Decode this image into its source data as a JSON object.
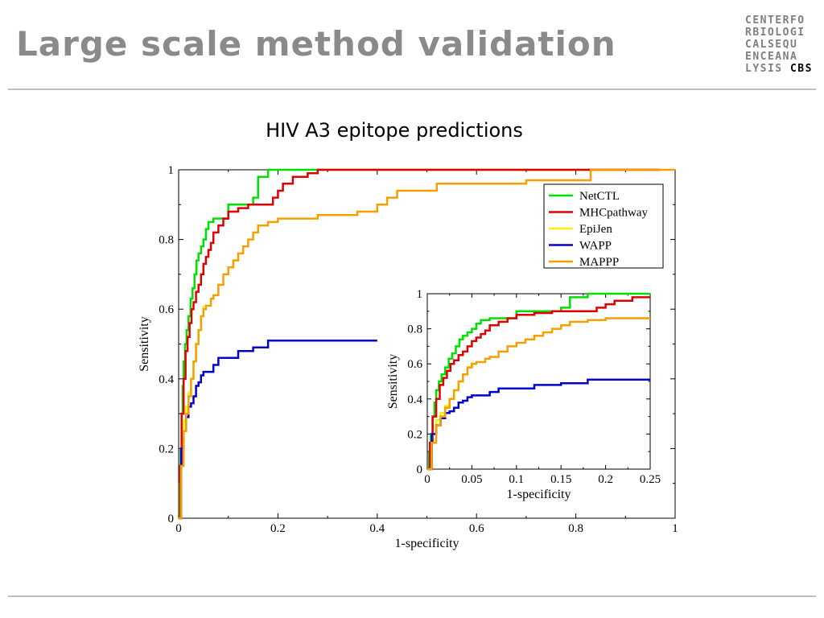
{
  "slide": {
    "title": "Large scale method validation",
    "logo_lines": [
      "CENTERFO",
      "RBIOLOGI",
      "CALSEQU",
      "ENCEANA",
      "LYSIS"
    ],
    "logo_bold": "CBS"
  },
  "chart_data": [
    {
      "type": "line",
      "title": "HIV A3 epitope predictions",
      "xlabel": "1-specificity",
      "ylabel": "Sensitivity",
      "xlim": [
        0,
        1
      ],
      "ylim": [
        0,
        1
      ],
      "xticks": [
        0,
        0.2,
        0.4,
        0.6,
        0.8,
        1
      ],
      "xtick_labels": [
        "0",
        "0.2",
        "0.4",
        "0.6",
        "0.8",
        "1"
      ],
      "yticks": [
        0,
        0.2,
        0.4,
        0.6,
        0.8,
        1
      ],
      "ytick_labels": [
        "0",
        "0.2",
        "0.4",
        "0.6",
        "0.8",
        "1"
      ],
      "legend_position": "top-right",
      "grid": false,
      "series": [
        {
          "name": "NetCTL",
          "color": "#00e000",
          "x": [
            0,
            0.002,
            0.004,
            0.006,
            0.008,
            0.01,
            0.013,
            0.016,
            0.02,
            0.024,
            0.028,
            0.032,
            0.036,
            0.04,
            0.045,
            0.05,
            0.055,
            0.06,
            0.07,
            0.09,
            0.1,
            0.13,
            0.15,
            0.16,
            0.18,
            0.2,
            0.4,
            0.7,
            0.97
          ],
          "y": [
            0,
            0.1,
            0.2,
            0.3,
            0.38,
            0.45,
            0.5,
            0.54,
            0.58,
            0.63,
            0.66,
            0.7,
            0.74,
            0.76,
            0.78,
            0.8,
            0.83,
            0.85,
            0.86,
            0.86,
            0.9,
            0.9,
            0.92,
            0.98,
            1,
            1,
            1,
            1,
            1
          ]
        },
        {
          "name": "MHCpathway",
          "color": "#e00000",
          "x": [
            0,
            0.003,
            0.006,
            0.01,
            0.014,
            0.018,
            0.022,
            0.026,
            0.03,
            0.035,
            0.04,
            0.045,
            0.05,
            0.055,
            0.06,
            0.065,
            0.07,
            0.08,
            0.09,
            0.1,
            0.12,
            0.14,
            0.16,
            0.18,
            0.19,
            0.2,
            0.21,
            0.23,
            0.26,
            0.28,
            0.4,
            0.7,
            0.97
          ],
          "y": [
            0,
            0.15,
            0.3,
            0.4,
            0.48,
            0.52,
            0.56,
            0.6,
            0.62,
            0.65,
            0.67,
            0.7,
            0.73,
            0.75,
            0.77,
            0.79,
            0.82,
            0.84,
            0.86,
            0.88,
            0.89,
            0.9,
            0.9,
            0.9,
            0.92,
            0.94,
            0.96,
            0.98,
            0.99,
            1,
            1,
            1,
            1
          ]
        },
        {
          "name": "EpiJen",
          "color": "#ffee00",
          "x": [
            0,
            0.005,
            0.01,
            0.015,
            0.02,
            0.025,
            0.03,
            0.035,
            0.04,
            0.045,
            0.05
          ],
          "y": [
            0,
            0.2,
            0.28,
            0.32,
            0.36,
            0.4,
            0.45,
            0.5,
            0.54,
            0.58,
            0.61
          ]
        },
        {
          "name": "WAPP",
          "color": "#0000d0",
          "x": [
            0,
            0.005,
            0.01,
            0.015,
            0.02,
            0.025,
            0.03,
            0.035,
            0.04,
            0.045,
            0.05,
            0.06,
            0.07,
            0.08,
            0.1,
            0.12,
            0.15,
            0.18,
            0.25,
            0.4
          ],
          "y": [
            0,
            0.2,
            0.25,
            0.29,
            0.32,
            0.33,
            0.35,
            0.38,
            0.39,
            0.41,
            0.42,
            0.42,
            0.44,
            0.46,
            0.46,
            0.48,
            0.49,
            0.51,
            0.51,
            0.51
          ]
        },
        {
          "name": "MAPPP",
          "color": "#f5a000",
          "x": [
            0,
            0.005,
            0.01,
            0.015,
            0.02,
            0.025,
            0.03,
            0.035,
            0.04,
            0.045,
            0.05,
            0.055,
            0.06,
            0.065,
            0.07,
            0.08,
            0.09,
            0.1,
            0.11,
            0.12,
            0.13,
            0.14,
            0.15,
            0.16,
            0.18,
            0.2,
            0.22,
            0.25,
            0.28,
            0.32,
            0.36,
            0.4,
            0.42,
            0.44,
            0.5,
            0.52,
            0.6,
            0.7,
            0.83,
            1
          ],
          "y": [
            0,
            0.15,
            0.25,
            0.3,
            0.35,
            0.4,
            0.45,
            0.5,
            0.54,
            0.58,
            0.6,
            0.61,
            0.61,
            0.63,
            0.64,
            0.67,
            0.7,
            0.72,
            0.74,
            0.76,
            0.78,
            0.8,
            0.82,
            0.84,
            0.85,
            0.86,
            0.86,
            0.86,
            0.87,
            0.87,
            0.88,
            0.9,
            0.92,
            0.94,
            0.94,
            0.96,
            0.96,
            0.97,
            1,
            1
          ]
        }
      ]
    },
    {
      "type": "line",
      "title": "",
      "xlabel": "1-specificity",
      "ylabel": "Sensitivity",
      "xlim": [
        0,
        0.25
      ],
      "ylim": [
        0,
        1
      ],
      "xticks": [
        0,
        0.05,
        0.1,
        0.15,
        0.2,
        0.25
      ],
      "xtick_labels": [
        "0",
        "0.05",
        "0.1",
        "0.15",
        "0.2",
        "0.25"
      ],
      "yticks": [
        0,
        0.2,
        0.4,
        0.6,
        0.8,
        1
      ],
      "ytick_labels": [
        "0",
        "0.2",
        "0.4",
        "0.6",
        "0.8",
        "1"
      ],
      "grid": false,
      "series": [
        {
          "name": "NetCTL",
          "color": "#00e000",
          "x": [
            0,
            0.002,
            0.004,
            0.006,
            0.008,
            0.01,
            0.013,
            0.016,
            0.02,
            0.024,
            0.028,
            0.032,
            0.036,
            0.04,
            0.045,
            0.05,
            0.055,
            0.06,
            0.07,
            0.09,
            0.1,
            0.13,
            0.15,
            0.16,
            0.18,
            0.2,
            0.25
          ],
          "y": [
            0,
            0.1,
            0.2,
            0.3,
            0.38,
            0.45,
            0.5,
            0.54,
            0.58,
            0.63,
            0.66,
            0.7,
            0.74,
            0.76,
            0.78,
            0.8,
            0.83,
            0.85,
            0.86,
            0.86,
            0.9,
            0.9,
            0.92,
            0.98,
            1,
            1,
            1
          ]
        },
        {
          "name": "MHCpathway",
          "color": "#e00000",
          "x": [
            0,
            0.003,
            0.006,
            0.01,
            0.014,
            0.018,
            0.022,
            0.026,
            0.03,
            0.035,
            0.04,
            0.045,
            0.05,
            0.055,
            0.06,
            0.065,
            0.07,
            0.08,
            0.09,
            0.1,
            0.12,
            0.14,
            0.16,
            0.18,
            0.19,
            0.2,
            0.21,
            0.23,
            0.25
          ],
          "y": [
            0,
            0.15,
            0.3,
            0.4,
            0.48,
            0.52,
            0.56,
            0.6,
            0.62,
            0.65,
            0.67,
            0.7,
            0.73,
            0.75,
            0.77,
            0.79,
            0.82,
            0.84,
            0.86,
            0.88,
            0.89,
            0.9,
            0.9,
            0.9,
            0.92,
            0.94,
            0.96,
            0.98,
            0.98
          ]
        },
        {
          "name": "EpiJen",
          "color": "#ffee00",
          "x": [
            0,
            0.005,
            0.01,
            0.015,
            0.02,
            0.025,
            0.03,
            0.035,
            0.04,
            0.045,
            0.05
          ],
          "y": [
            0,
            0.2,
            0.28,
            0.32,
            0.36,
            0.4,
            0.45,
            0.5,
            0.54,
            0.58,
            0.61
          ]
        },
        {
          "name": "WAPP",
          "color": "#0000d0",
          "x": [
            0,
            0.005,
            0.01,
            0.015,
            0.02,
            0.025,
            0.03,
            0.035,
            0.04,
            0.045,
            0.05,
            0.06,
            0.07,
            0.08,
            0.1,
            0.12,
            0.15,
            0.18,
            0.25
          ],
          "y": [
            0,
            0.2,
            0.25,
            0.29,
            0.32,
            0.33,
            0.35,
            0.38,
            0.39,
            0.41,
            0.42,
            0.42,
            0.44,
            0.46,
            0.46,
            0.48,
            0.49,
            0.51,
            0.51
          ]
        },
        {
          "name": "MAPPP",
          "color": "#f5a000",
          "x": [
            0,
            0.005,
            0.01,
            0.015,
            0.02,
            0.025,
            0.03,
            0.035,
            0.04,
            0.045,
            0.05,
            0.055,
            0.06,
            0.065,
            0.07,
            0.08,
            0.09,
            0.1,
            0.11,
            0.12,
            0.13,
            0.14,
            0.15,
            0.16,
            0.18,
            0.2,
            0.25
          ],
          "y": [
            0,
            0.15,
            0.25,
            0.3,
            0.35,
            0.4,
            0.45,
            0.5,
            0.54,
            0.58,
            0.6,
            0.61,
            0.61,
            0.63,
            0.64,
            0.67,
            0.7,
            0.72,
            0.74,
            0.76,
            0.78,
            0.8,
            0.82,
            0.84,
            0.85,
            0.86,
            0.86
          ]
        }
      ]
    }
  ]
}
